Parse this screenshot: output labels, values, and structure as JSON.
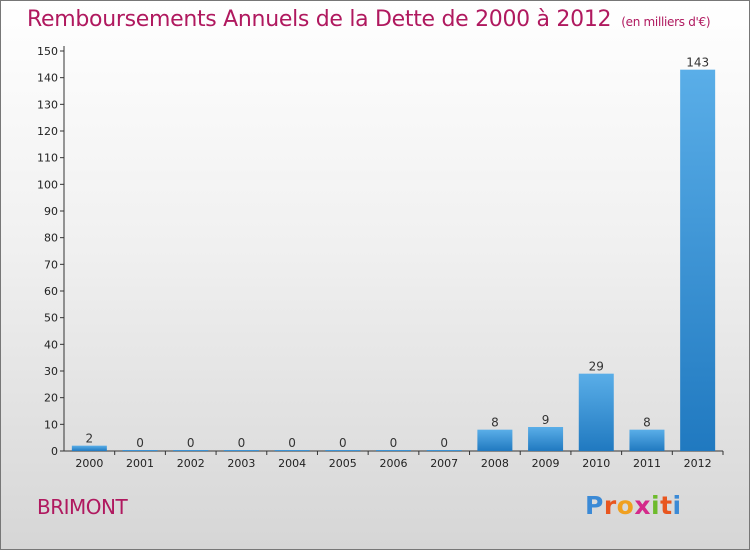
{
  "title": "Remboursements Annuels de la Dette de 2000 à 2012",
  "unit": "(en milliers d'€)",
  "town": "BRIMONT",
  "logo": {
    "letters": [
      "P",
      "r",
      "o",
      "x",
      "i",
      "t",
      "i"
    ],
    "colors": [
      "#3b8ad6",
      "#e8561f",
      "#f0a020",
      "#d42a8a",
      "#6dbb2c",
      "#e8561f",
      "#3b8ad6"
    ]
  },
  "colors": {
    "title": "#b0195f",
    "bar_light": "#5aaee8",
    "bar_dark": "#2079c0"
  },
  "chart_data": {
    "type": "bar",
    "categories": [
      "2000",
      "2001",
      "2002",
      "2003",
      "2004",
      "2005",
      "2006",
      "2007",
      "2008",
      "2009",
      "2010",
      "2011",
      "2012"
    ],
    "values": [
      2,
      0,
      0,
      0,
      0,
      0,
      0,
      0,
      8,
      9,
      29,
      8,
      143
    ],
    "data_labels": [
      "2",
      "0",
      "0",
      "0",
      "0",
      "0",
      "0",
      "0",
      "8",
      "9",
      "29",
      "8",
      "143"
    ],
    "yticks": [
      0,
      10,
      20,
      30,
      40,
      50,
      60,
      70,
      80,
      90,
      100,
      110,
      120,
      130,
      140,
      150
    ],
    "ylim": [
      0,
      150
    ],
    "grid": false
  }
}
